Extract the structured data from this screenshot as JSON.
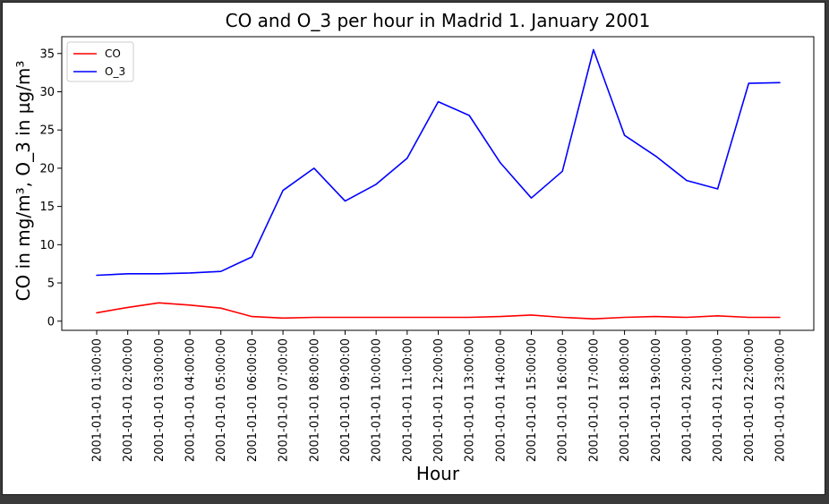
{
  "chart_data": {
    "type": "line",
    "title": "CO and O_3 per hour in Madrid 1. January 2001",
    "xlabel": "Hour",
    "ylabel": "CO in mg/m³, O_3 in µg/m³",
    "categories": [
      "2001-01-01 01:00:00",
      "2001-01-01 02:00:00",
      "2001-01-01 03:00:00",
      "2001-01-01 04:00:00",
      "2001-01-01 05:00:00",
      "2001-01-01 06:00:00",
      "2001-01-01 07:00:00",
      "2001-01-01 08:00:00",
      "2001-01-01 09:00:00",
      "2001-01-01 10:00:00",
      "2001-01-01 11:00:00",
      "2001-01-01 12:00:00",
      "2001-01-01 13:00:00",
      "2001-01-01 14:00:00",
      "2001-01-01 15:00:00",
      "2001-01-01 16:00:00",
      "2001-01-01 17:00:00",
      "2001-01-01 18:00:00",
      "2001-01-01 19:00:00",
      "2001-01-01 20:00:00",
      "2001-01-01 21:00:00",
      "2001-01-01 22:00:00",
      "2001-01-01 23:00:00"
    ],
    "series": [
      {
        "name": "CO",
        "color": "#ff0000",
        "values": [
          1.1,
          1.8,
          2.4,
          2.1,
          1.7,
          0.6,
          0.4,
          0.5,
          0.5,
          0.5,
          0.5,
          0.5,
          0.5,
          0.6,
          0.8,
          0.5,
          0.3,
          0.5,
          0.6,
          0.5,
          0.7,
          0.5,
          0.5
        ]
      },
      {
        "name": "O_3",
        "color": "#0000ff",
        "values": [
          6.0,
          6.2,
          6.2,
          6.3,
          6.5,
          8.4,
          17.1,
          20.0,
          15.7,
          17.9,
          21.3,
          28.7,
          26.9,
          20.7,
          16.1,
          19.6,
          35.5,
          24.3,
          21.6,
          18.4,
          17.3,
          31.1,
          31.2
        ]
      }
    ],
    "ylim": [
      -1.2,
      37.2
    ],
    "yticks": [
      0,
      5,
      10,
      15,
      20,
      25,
      30,
      35
    ],
    "grid": false,
    "legend_position": "upper-left"
  }
}
